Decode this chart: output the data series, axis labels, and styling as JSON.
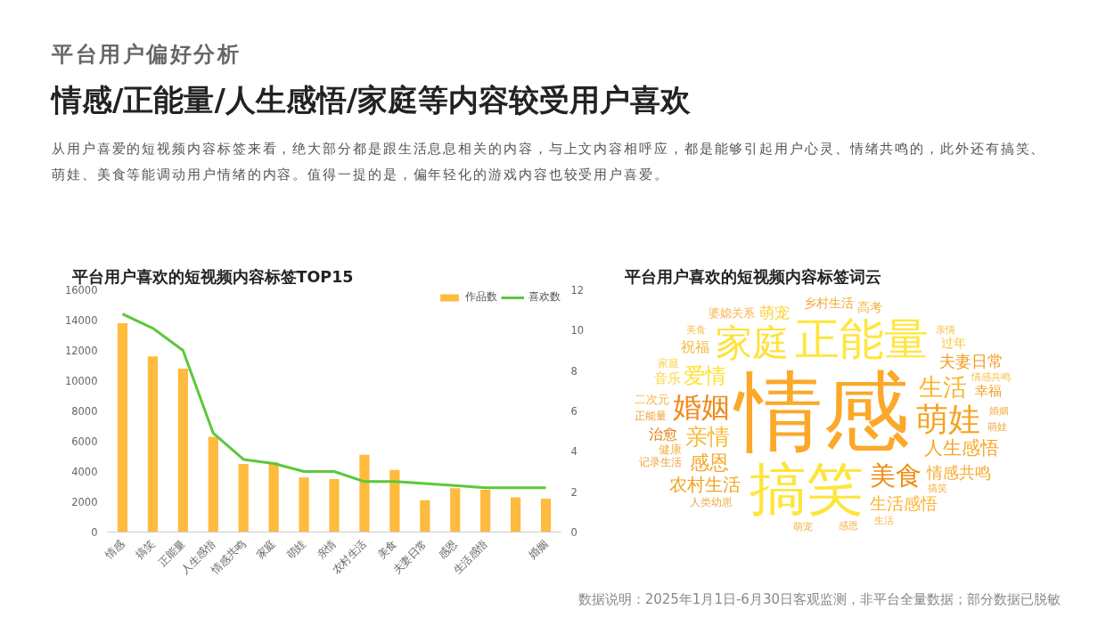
{
  "chart_data": [
    {
      "type": "bar",
      "title": "平台用户喜欢的短视频内容标签TOP15",
      "categories": [
        "情感",
        "搞笑",
        "正能量",
        "人生感悟",
        "情感共鸣",
        "家庭",
        "萌娃",
        "亲情",
        "农村生活",
        "美食",
        "夫妻日常",
        "感恩",
        "生活感悟",
        null,
        "婚姻"
      ],
      "series": [
        {
          "name": "作品数",
          "type": "bar",
          "color": "#ffbb3d",
          "values": [
            13800,
            11600,
            10800,
            6300,
            4500,
            4600,
            3600,
            3500,
            5100,
            4100,
            2100,
            2900,
            2800,
            2300,
            2200
          ]
        },
        {
          "name": "喜欢数",
          "type": "line",
          "axis": "y2",
          "color": "#5cc83a",
          "values": [
            10.8,
            10.1,
            9.0,
            4.9,
            3.6,
            3.4,
            3.0,
            3.0,
            2.5,
            2.5,
            2.4,
            2.3,
            2.2,
            2.2,
            2.2
          ]
        }
      ],
      "ylim": [
        0,
        16000
      ],
      "yticks": [
        0,
        2000,
        4000,
        6000,
        8000,
        10000,
        12000,
        14000,
        16000
      ],
      "y2lim": [
        0,
        12
      ],
      "y2ticks": [
        0,
        2,
        4,
        6,
        8,
        10,
        12
      ],
      "grid": false,
      "legend": "top right",
      "annotations": [
        "平台用户偏好分析",
        "情感/正能量/人生感悟/家庭等内容较受用户喜欢",
        "从用户喜爱的短视频内容标签来看，绝大部分都是跟生活息息相关的内容，与上文内容相呼应，都是能够引起用户心灵、情绪共鸣的，此外还有搞笑、萌娃、美食等能调动用户情绪的内容。值得一提的是，偏年轻化的游戏内容也较受用户喜爱。",
        "数据说明：2025年1月1日-6月30日客观监测，非平台全量数据；部分数据已脱敏"
      ]
    },
    {
      "type": "other",
      "title": "平台用户喜欢的短视频内容标签词云",
      "categories": [
        "情感",
        "搞笑",
        "正能量",
        "家庭",
        "萌娃",
        "婚姻",
        "美食",
        "生活",
        "亲情",
        "爱情",
        "感恩",
        "人生感悟",
        "农村生活",
        "生活感悟",
        "情感共鸣",
        "夫妻日常",
        "萌宠",
        "祝福",
        "治愈",
        "音乐",
        "幸福",
        "过年",
        "高考",
        "乡村生活",
        "二次元",
        "健康",
        "婆媳关系",
        "记录生活",
        "正能量",
        "人类幼崽",
        "家庭",
        "情感共鸣",
        "搞笑",
        "萌娃",
        "婚姻",
        "亲情",
        "美食",
        "萌宠",
        "感恩",
        "生活"
      ],
      "colors": [
        "#fca82a",
        "#ffe53b",
        "#ffe63e",
        "#ffe13a",
        "#f7a21f",
        "#f08818",
        "#f08c12",
        "#f9b42a",
        "#f6bb32",
        "#fde234",
        "#f7a629",
        "#f8a72a",
        "#f4a322",
        "#fbb52e",
        "#f6aa2e",
        "#f39b1f",
        "#fcd232",
        "#f5b83c",
        "#ea7c12",
        "#fbd73c",
        "#f1a024",
        "#f8c43a",
        "#f4b132",
        "#f4a83a",
        "#f5b23a",
        "#f3b544",
        "#f6b246",
        "#f1a13a",
        "#f0a030",
        "#f3a84a",
        "#f9d24a",
        "#f7c14a",
        "#f6b040",
        "#f2a43a",
        "#f4b04a",
        "#f8c04a",
        "#f6c450",
        "#f3b046",
        "#f5b24e",
        "#f7b948"
      ]
    }
  ]
}
